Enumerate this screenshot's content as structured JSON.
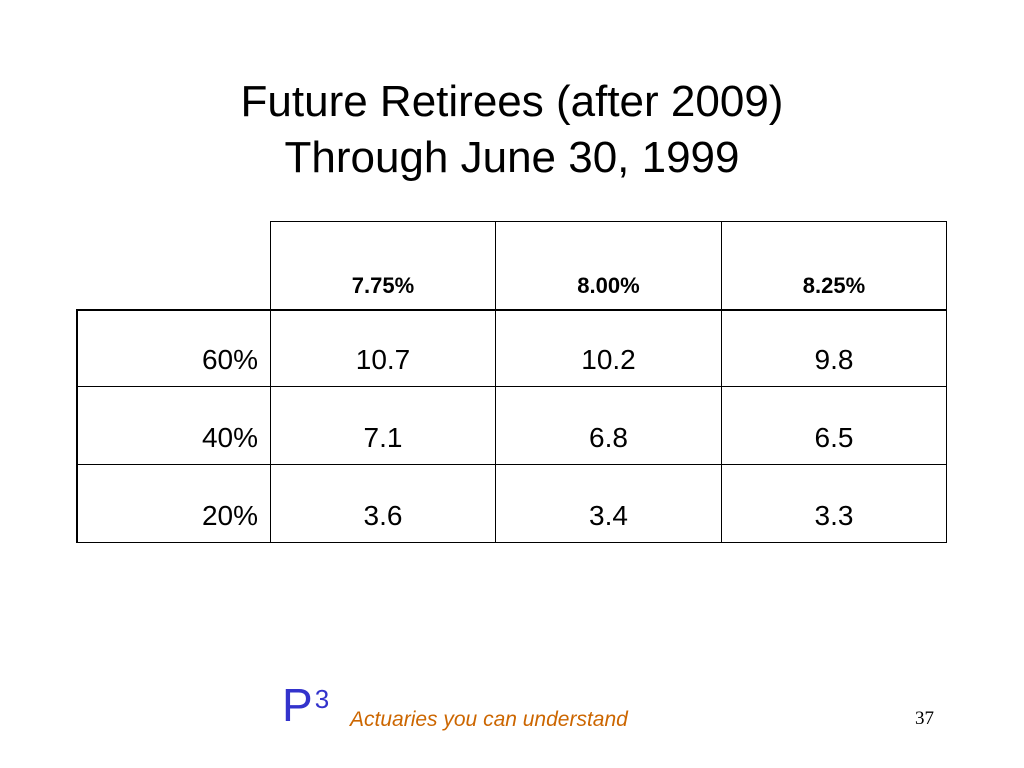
{
  "title": {
    "line1": "Future Retirees (after 2009)",
    "line2": "Through June 30, 1999"
  },
  "table": {
    "columns": [
      "7.75%",
      "8.00%",
      "8.25%"
    ],
    "rows": [
      {
        "label": "60%",
        "values": [
          "10.7",
          "10.2",
          "9.8"
        ]
      },
      {
        "label": "40%",
        "values": [
          "7.1",
          "6.8",
          "6.5"
        ]
      },
      {
        "label": "20%",
        "values": [
          "3.6",
          "3.4",
          "3.3"
        ]
      }
    ]
  },
  "footer": {
    "logo_letter": "P",
    "logo_superscript": "3",
    "tagline": "Actuaries you can understand",
    "page_number": "37"
  },
  "colors": {
    "logo": "#3333cc",
    "tagline": "#cc6600"
  }
}
